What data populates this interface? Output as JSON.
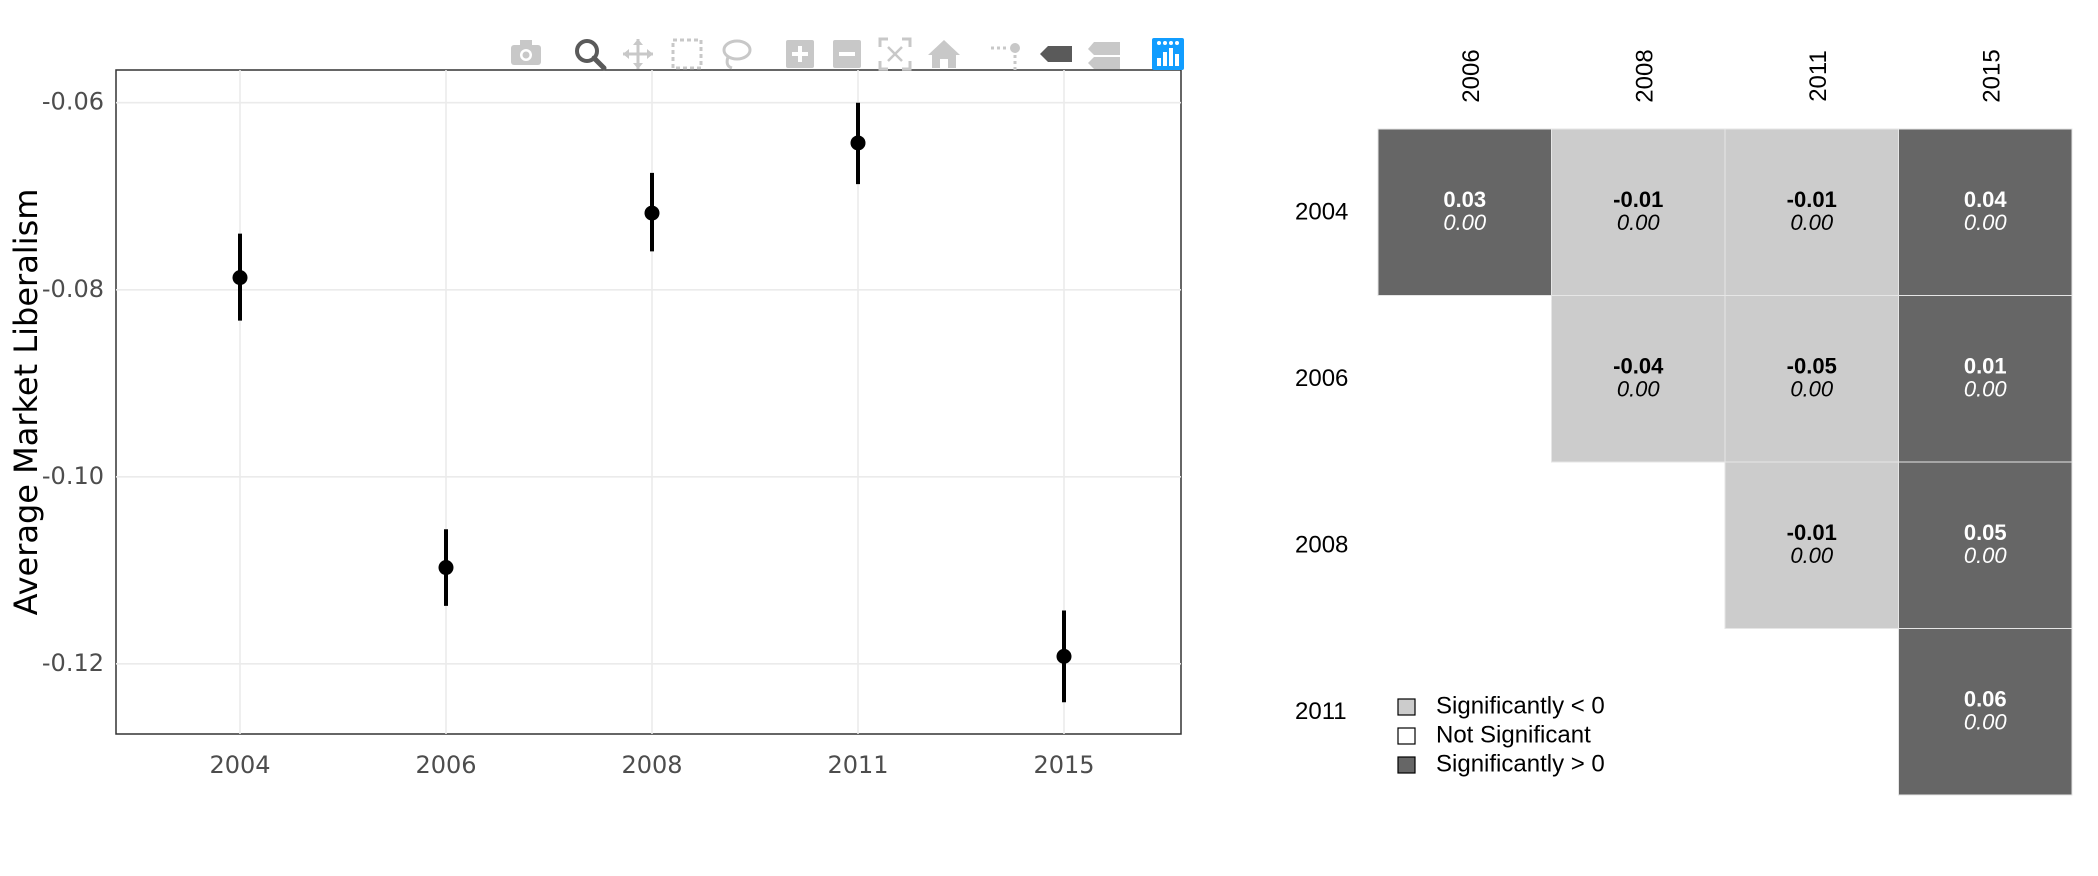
{
  "chart_data": [
    {
      "type": "scatter",
      "x": [
        "2004",
        "2006",
        "2008",
        "2011",
        "2015"
      ],
      "y": [
        -0.0787,
        -0.1097,
        -0.0718,
        -0.0643,
        -0.1192
      ],
      "lower": [
        -0.0833,
        -0.1138,
        -0.0759,
        -0.0687,
        -0.1241
      ],
      "upper": [
        -0.074,
        -0.1056,
        -0.0675,
        -0.06,
        -0.1143
      ],
      "ylabel": "Average Market Liberalism",
      "ylim": [
        -0.1275,
        -0.0565
      ],
      "yticks": [
        -0.06,
        -0.08,
        -0.1,
        -0.12
      ],
      "ytick_labels": [
        "-0.06",
        "-0.08",
        "-0.10",
        "-0.12"
      ],
      "xtick_labels": [
        "2004",
        "2006",
        "2008",
        "2011",
        "2015"
      ],
      "grid": true,
      "marker_color": "#000000"
    },
    {
      "type": "heatmap",
      "col_labels": [
        "2006",
        "2008",
        "2011",
        "2015"
      ],
      "row_labels": [
        "2004",
        "2006",
        "2008",
        "2011"
      ],
      "cells": [
        {
          "row": 0,
          "col": 0,
          "diff": "0.03",
          "p": "0.00",
          "sig": "pos"
        },
        {
          "row": 0,
          "col": 1,
          "diff": "-0.01",
          "p": "0.00",
          "sig": "neg"
        },
        {
          "row": 0,
          "col": 2,
          "diff": "-0.01",
          "p": "0.00",
          "sig": "neg"
        },
        {
          "row": 0,
          "col": 3,
          "diff": "0.04",
          "p": "0.00",
          "sig": "pos"
        },
        {
          "row": 1,
          "col": 1,
          "diff": "-0.04",
          "p": "0.00",
          "sig": "neg"
        },
        {
          "row": 1,
          "col": 2,
          "diff": "-0.05",
          "p": "0.00",
          "sig": "neg"
        },
        {
          "row": 1,
          "col": 3,
          "diff": "0.01",
          "p": "0.00",
          "sig": "pos"
        },
        {
          "row": 2,
          "col": 2,
          "diff": "-0.01",
          "p": "0.00",
          "sig": "neg"
        },
        {
          "row": 2,
          "col": 3,
          "diff": "0.05",
          "p": "0.00",
          "sig": "pos"
        },
        {
          "row": 3,
          "col": 3,
          "diff": "0.06",
          "p": "0.00",
          "sig": "pos"
        }
      ],
      "legend": [
        {
          "label": "Significantly < 0",
          "sig": "neg"
        },
        {
          "label": "Not Significant",
          "sig": "none"
        },
        {
          "label": "Significantly > 0",
          "sig": "pos"
        }
      ],
      "colors": {
        "pos": "#666666",
        "neg": "#cccccc",
        "none": "#ffffff"
      }
    }
  ],
  "modebar": {
    "buttons": [
      "camera-icon",
      "zoom-icon",
      "pan-icon",
      "box-select-icon",
      "lasso-icon",
      "zoom-in-icon",
      "zoom-out-icon",
      "autoscale-icon",
      "reset-axes-icon",
      "spike-lines-icon",
      "hover-closest-icon",
      "hover-compare-icon",
      "plotly-logo-icon"
    ],
    "active": "zoom-icon",
    "logo_color": "#119dff"
  }
}
